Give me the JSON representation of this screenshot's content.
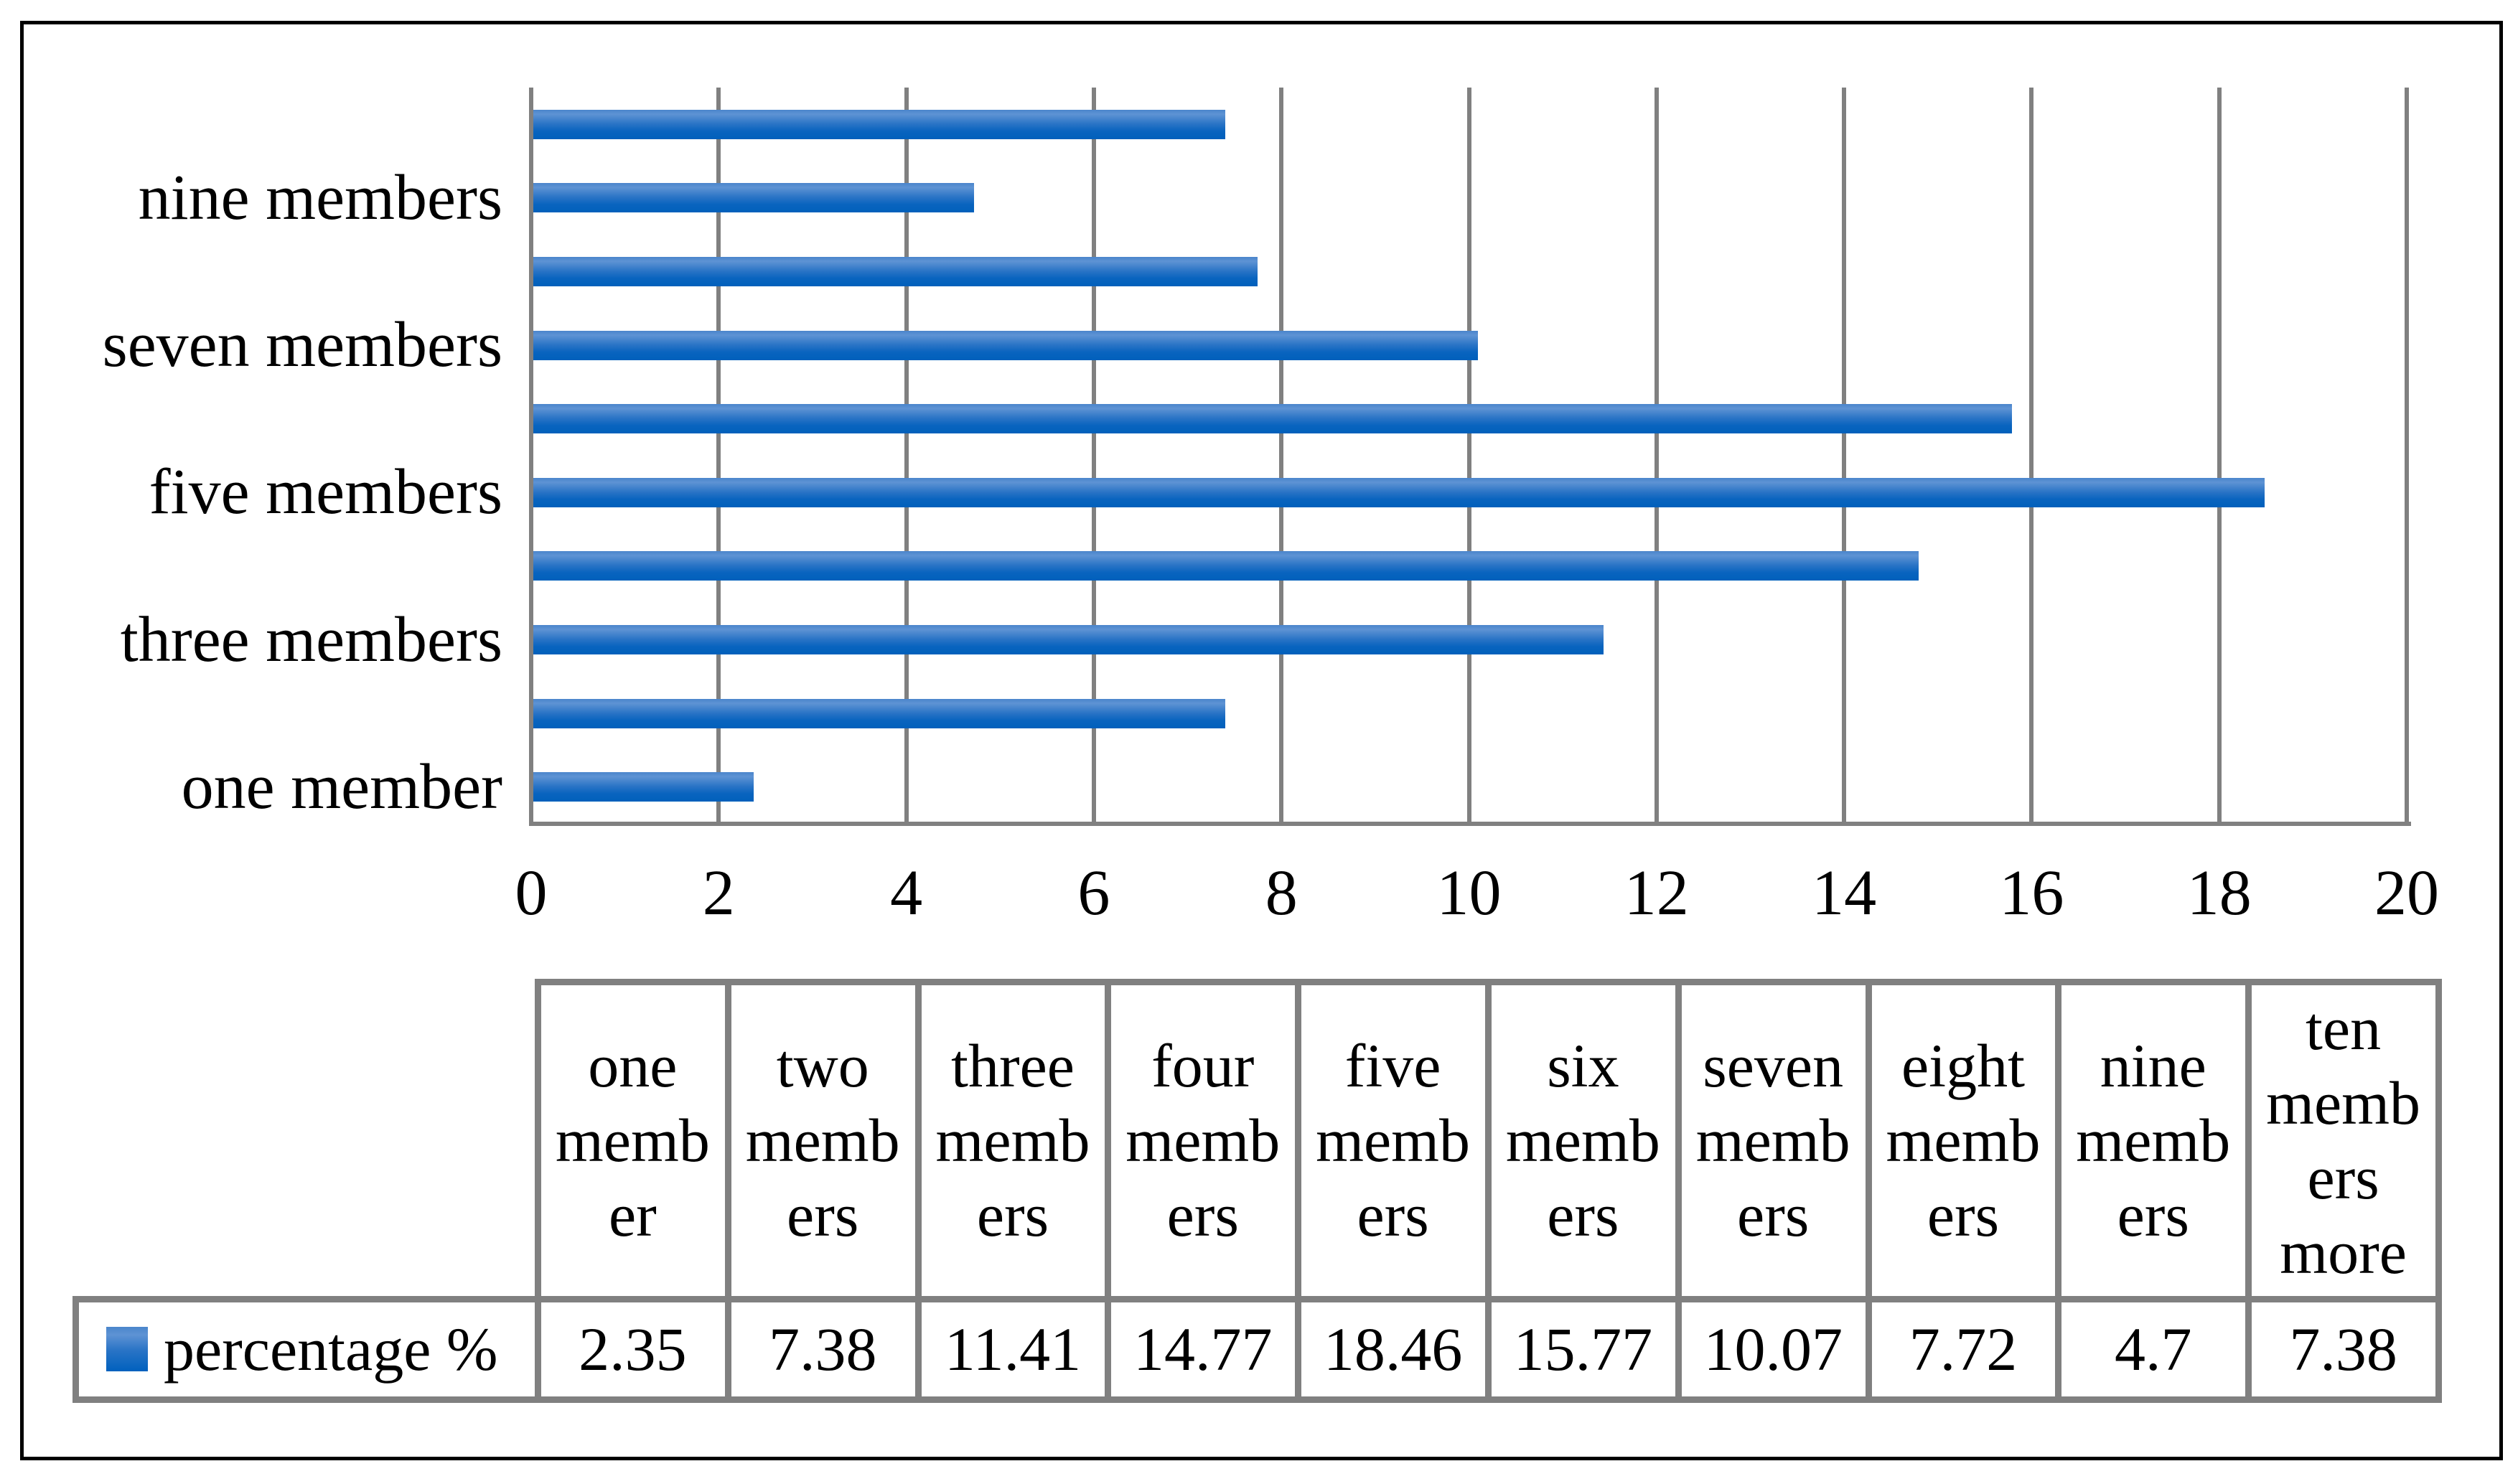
{
  "chart_data": {
    "type": "bar",
    "orientation": "horizontal",
    "title": "",
    "xlabel": "",
    "ylabel": "",
    "categories": [
      "one member",
      "two members",
      "three members",
      "four members",
      "five members",
      "six members",
      "seven members",
      "eight members",
      "nine members",
      "ten members more"
    ],
    "values": [
      2.35,
      7.38,
      11.41,
      14.77,
      18.46,
      15.77,
      10.07,
      7.72,
      4.7,
      7.38
    ],
    "series_name": "percentage %",
    "xlim": [
      0,
      20
    ],
    "x_ticks": [
      "0",
      "2",
      "4",
      "6",
      "8",
      "10",
      "12",
      "14",
      "16",
      "18",
      "20"
    ],
    "y_axis_visible_labels": [
      "nine members",
      "seven members",
      "five members",
      "three members",
      "one member"
    ],
    "grid": true,
    "legend_position": "bottom-table",
    "colors": {
      "bar_main": "#1268bf",
      "bar_gradient_light": "#5e93d4",
      "bar_gradient_dark": "#0060bb",
      "gridline": "#808080",
      "table_border": "#808080",
      "figure_border": "#000000",
      "text": "#000000"
    }
  },
  "data_table": {
    "legend_label": "percentage %",
    "column_headers_wrapped": [
      "one\nmemb\ner",
      "two\nmemb\ners",
      "three\nmemb\ners",
      "four\nmemb\ners",
      "five\nmemb\ners",
      "six\nmemb\ners",
      "seven\nmemb\ners",
      "eight\nmemb\ners",
      "nine\nmemb\ners",
      "ten\nmemb\ners\nmore"
    ],
    "values_text": [
      "2.35",
      "7.38",
      "11.41",
      "14.77",
      "18.46",
      "15.77",
      "10.07",
      "7.72",
      "4.7",
      "7.38"
    ]
  }
}
